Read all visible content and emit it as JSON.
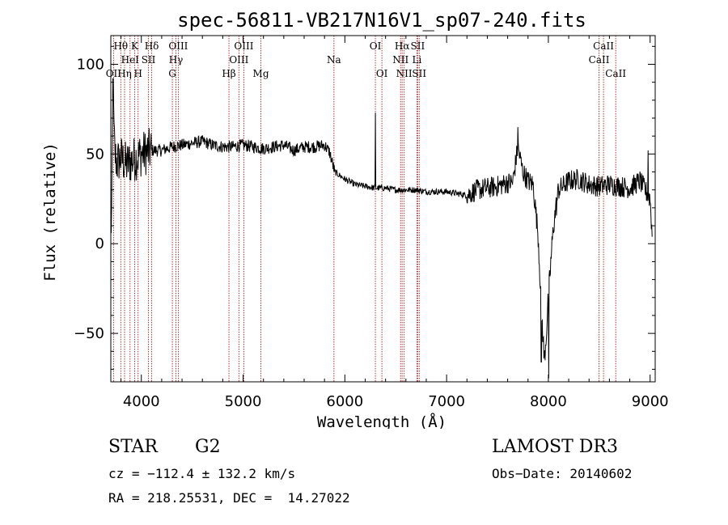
{
  "chart_data": {
    "type": "line",
    "title": "spec-56811-VB217N16V1_sp07-240.fits",
    "xlabel": "Wavelength (Å)",
    "ylabel": "Flux (relative)",
    "xlim": [
      3700,
      9050
    ],
    "ylim": [
      -77,
      116
    ],
    "xticks": [
      4000,
      5000,
      6000,
      7000,
      8000,
      9000
    ],
    "yticks": [
      -50,
      0,
      50,
      100
    ],
    "xtick_labels": [
      "4000",
      "5000",
      "6000",
      "7000",
      "8000",
      "9000"
    ],
    "ytick_labels": [
      "−50",
      "0",
      "50",
      "100"
    ],
    "spectrum_color": "#000000",
    "line_color": "#b02020",
    "spectrum_anchors": [
      [
        3700,
        5
      ],
      [
        3710,
        20
      ],
      [
        3720,
        80
      ],
      [
        3740,
        50
      ],
      [
        3760,
        45
      ],
      [
        3800,
        48
      ],
      [
        3850,
        44
      ],
      [
        3900,
        46
      ],
      [
        3950,
        48
      ],
      [
        4000,
        50
      ],
      [
        4100,
        52
      ],
      [
        4200,
        52
      ],
      [
        4300,
        54
      ],
      [
        4400,
        55
      ],
      [
        4500,
        56
      ],
      [
        4600,
        57
      ],
      [
        4700,
        55
      ],
      [
        4800,
        54
      ],
      [
        4900,
        54
      ],
      [
        5000,
        55
      ],
      [
        5100,
        54
      ],
      [
        5200,
        53
      ],
      [
        5300,
        54
      ],
      [
        5400,
        55
      ],
      [
        5500,
        52
      ],
      [
        5600,
        54
      ],
      [
        5700,
        54
      ],
      [
        5800,
        55
      ],
      [
        5850,
        51
      ],
      [
        5900,
        40
      ],
      [
        6000,
        36
      ],
      [
        6100,
        33
      ],
      [
        6200,
        32
      ],
      [
        6300,
        31
      ],
      [
        6400,
        31
      ],
      [
        6500,
        30
      ],
      [
        6600,
        30
      ],
      [
        6700,
        30
      ],
      [
        6800,
        29
      ],
      [
        6900,
        29
      ],
      [
        7000,
        29
      ],
      [
        7100,
        28
      ],
      [
        7200,
        27
      ],
      [
        7300,
        30
      ],
      [
        7400,
        31
      ],
      [
        7500,
        32
      ],
      [
        7600,
        34
      ],
      [
        7650,
        34
      ],
      [
        7700,
        54
      ],
      [
        7750,
        40
      ],
      [
        7800,
        35
      ],
      [
        7850,
        33
      ],
      [
        7900,
        5
      ],
      [
        7920,
        -20
      ],
      [
        7940,
        -45
      ],
      [
        7960,
        -65
      ],
      [
        7980,
        -50
      ],
      [
        8000,
        -30
      ],
      [
        8050,
        10
      ],
      [
        8100,
        30
      ],
      [
        8200,
        35
      ],
      [
        8300,
        36
      ],
      [
        8400,
        33
      ],
      [
        8500,
        32
      ],
      [
        8600,
        33
      ],
      [
        8700,
        32
      ],
      [
        8800,
        31
      ],
      [
        8900,
        35
      ],
      [
        9000,
        25
      ],
      [
        9020,
        5
      ]
    ],
    "spectrum_features": [
      {
        "x": 3722,
        "y": 92
      },
      {
        "x": 6300,
        "y": 73
      },
      {
        "x": 7930,
        "y": -66
      },
      {
        "x": 8005,
        "y": -75
      },
      {
        "x": 7700,
        "y": 65
      },
      {
        "x": 8980,
        "y": 52
      }
    ],
    "spectral_lines": [
      {
        "name": "OII",
        "wavelength": 3727,
        "row": 3
      },
      {
        "name": "Hθ",
        "wavelength": 3798,
        "row": 1
      },
      {
        "name": "Hη",
        "wavelength": 3835,
        "row": 3
      },
      {
        "name": "HeI",
        "wavelength": 3889,
        "row": 2
      },
      {
        "name": "K",
        "wavelength": 3934,
        "row": 1
      },
      {
        "name": "H",
        "wavelength": 3968,
        "row": 3
      },
      {
        "name": "SII",
        "wavelength": 4070,
        "row": 2
      },
      {
        "name": "Hδ",
        "wavelength": 4102,
        "row": 1
      },
      {
        "name": "G",
        "wavelength": 4305,
        "row": 3
      },
      {
        "name": "Hγ",
        "wavelength": 4340,
        "row": 2
      },
      {
        "name": "OIII",
        "wavelength": 4363,
        "row": 1
      },
      {
        "name": "Hβ",
        "wavelength": 4861,
        "row": 3
      },
      {
        "name": "OIII",
        "wavelength": 4959,
        "row": 2
      },
      {
        "name": "OIII",
        "wavelength": 5007,
        "row": 1
      },
      {
        "name": "Mg",
        "wavelength": 5175,
        "row": 3
      },
      {
        "name": "Na",
        "wavelength": 5893,
        "row": 2
      },
      {
        "name": "OI",
        "wavelength": 6300,
        "row": 1
      },
      {
        "name": "OI",
        "wavelength": 6364,
        "row": 3
      },
      {
        "name": "NII",
        "wavelength": 6548,
        "row": 2
      },
      {
        "name": "Hα",
        "wavelength": 6563,
        "row": 1
      },
      {
        "name": "NII",
        "wavelength": 6583,
        "row": 3
      },
      {
        "name": "Li",
        "wavelength": 6708,
        "row": 2
      },
      {
        "name": "SII",
        "wavelength": 6716,
        "row": 1
      },
      {
        "name": "SII",
        "wavelength": 6731,
        "row": 3
      },
      {
        "name": "CaII",
        "wavelength": 8498,
        "row": 2
      },
      {
        "name": "CaII",
        "wavelength": 8542,
        "row": 1
      },
      {
        "name": "CaII",
        "wavelength": 8662,
        "row": 3
      }
    ]
  },
  "info": {
    "object_class": "STAR",
    "subclass": "G2",
    "survey": "LAMOST DR3",
    "redshift": "cz = −112.4 ± 132.2 km/s",
    "obs_date": "Obs−Date: 20140602",
    "coords": "RA = 218.25531, DEC =  14.27022"
  }
}
